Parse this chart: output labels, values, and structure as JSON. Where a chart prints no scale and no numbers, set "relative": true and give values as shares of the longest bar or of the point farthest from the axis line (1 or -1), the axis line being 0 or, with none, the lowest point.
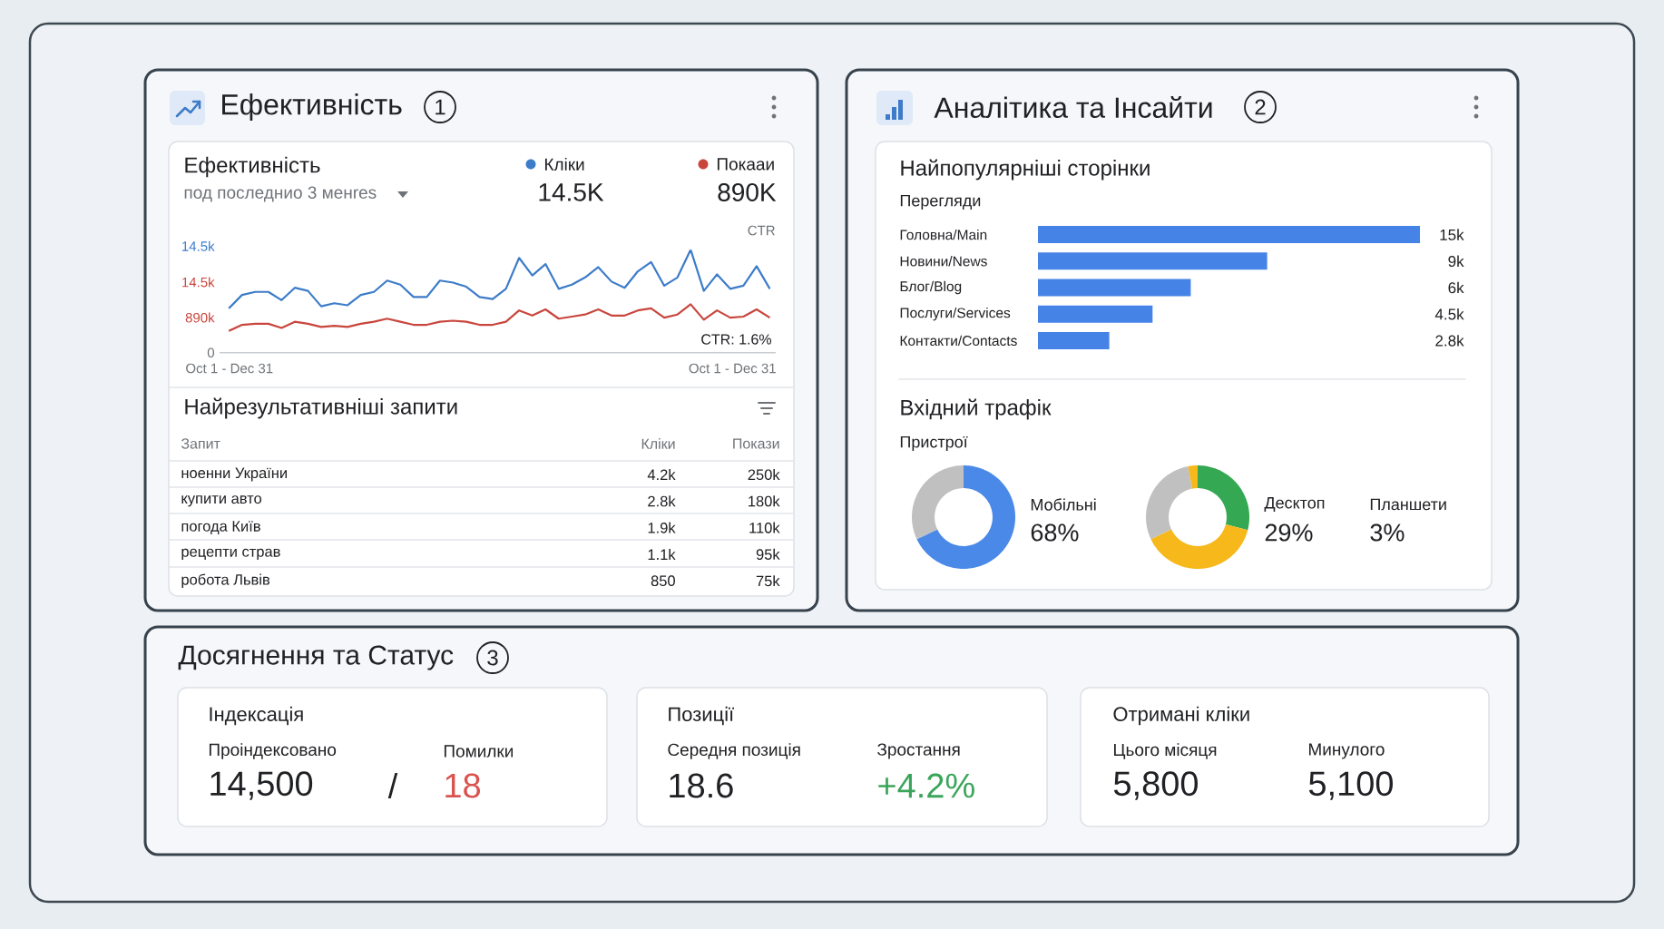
{
  "chart_data": [
    {
      "type": "line",
      "title": "Ефективність",
      "subtitle": "под последнио 3 менres",
      "relative": true,
      "categories": [
        null,
        null,
        null,
        null,
        null,
        null,
        null,
        null,
        null,
        null,
        null,
        null,
        null,
        null,
        null,
        null,
        null,
        null,
        null,
        null,
        null,
        null,
        null,
        null,
        null,
        null,
        null,
        null,
        null,
        null,
        null,
        null,
        null,
        null,
        null,
        null,
        null,
        null,
        null,
        null,
        null,
        null
      ],
      "series": [
        {
          "name": "Кліки",
          "color": "#3d7cc9",
          "values": [
            0.43,
            0.56,
            0.59,
            0.59,
            0.51,
            0.63,
            0.6,
            0.45,
            0.48,
            0.46,
            0.56,
            0.59,
            0.7,
            0.66,
            0.54,
            0.54,
            0.7,
            0.68,
            0.64,
            0.54,
            0.52,
            0.62,
            0.92,
            0.75,
            0.86,
            0.62,
            0.66,
            0.73,
            0.83,
            0.69,
            0.63,
            0.79,
            0.88,
            0.65,
            0.73,
            1,
            0.6,
            0.76,
            0.62,
            0.65,
            0.84,
            0.62
          ]
        },
        {
          "name": "Покааи",
          "color": "#c9463d",
          "values": [
            0.21,
            0.27,
            0.28,
            0.28,
            0.24,
            0.3,
            0.28,
            0.25,
            0.26,
            0.25,
            0.28,
            0.3,
            0.33,
            0.3,
            0.27,
            0.27,
            0.3,
            0.31,
            0.3,
            0.27,
            0.27,
            0.3,
            0.41,
            0.36,
            0.42,
            0.33,
            0.35,
            0.37,
            0.42,
            0.36,
            0.36,
            0.41,
            0.43,
            0.34,
            0.37,
            0.47,
            0.32,
            0.41,
            0.34,
            0.35,
            0.42,
            0.34
          ]
        }
      ],
      "legend": "top right",
      "annotations": [
        "Ефективність",
        "1",
        "14.5K",
        "890K",
        "CTR",
        "CTR: 1.6%",
        "Oct 1 - Dec 31",
        "Oct 1 - Dec 31",
        "14.5k",
        "14.5k",
        "890k",
        "0"
      ]
    },
    {
      "type": "other",
      "title": "Найрезультативніші запити",
      "annotations": [
        "Запит",
        "Кліки",
        "Покази",
        "ноенни України",
        "4.2k",
        "250k",
        "купити авто",
        "2.8k",
        "180k",
        "погода Київ",
        "1.9k",
        "110k",
        "рецепти страв",
        "1.1k",
        "95k",
        "робота Львів",
        "850",
        "75k"
      ]
    },
    {
      "type": "bar",
      "orientation": "horizontal",
      "title": "Найпопулярніші сторінки",
      "subtitle": "Перегляди",
      "categories": [
        "Головна/Main",
        "Новини/News",
        "Блог/Blog",
        "Послуги/Services",
        "Контакти/Contacts"
      ],
      "values": [
        15000,
        9000,
        6000,
        4500,
        2800
      ],
      "value_labels": [
        "15k",
        "9k",
        "6k",
        "4.5k",
        "2.8k"
      ],
      "color": "#4584e6",
      "annotations": [
        "Аналітика та Інсайти",
        "2"
      ]
    },
    {
      "type": "donut",
      "title": "Вхідний трафік",
      "subtitle": "Пристрої",
      "categories": [
        "Мобільні",
        null
      ],
      "values": [
        68,
        32
      ],
      "colors": [
        "#4a89e8",
        "#c0c0c0"
      ],
      "value_labels": [
        "68%",
        null
      ]
    },
    {
      "type": "donut",
      "categories": [
        "Десктоп",
        null,
        null,
        null
      ],
      "values": [
        29,
        39,
        29,
        3
      ],
      "colors": [
        "#34a853",
        "#f6b81a",
        "#c0c0c0",
        "#f6b81a"
      ],
      "value_labels": [
        "29%",
        null,
        null,
        null
      ],
      "annotations": [
        "Планшети",
        "3%"
      ]
    },
    {
      "type": "other",
      "title": "Досягнення та Статус",
      "annotations": [
        "3",
        "Індексація",
        "Проіндексовано",
        "14,500",
        "/",
        "Помилки",
        "18",
        "Позиції",
        "Середня позиція",
        "18.6",
        "Зростання",
        "+4.2%",
        "Отримані кліки",
        "Цього місяця",
        "5,800",
        "Минулого",
        "5,100"
      ]
    }
  ]
}
